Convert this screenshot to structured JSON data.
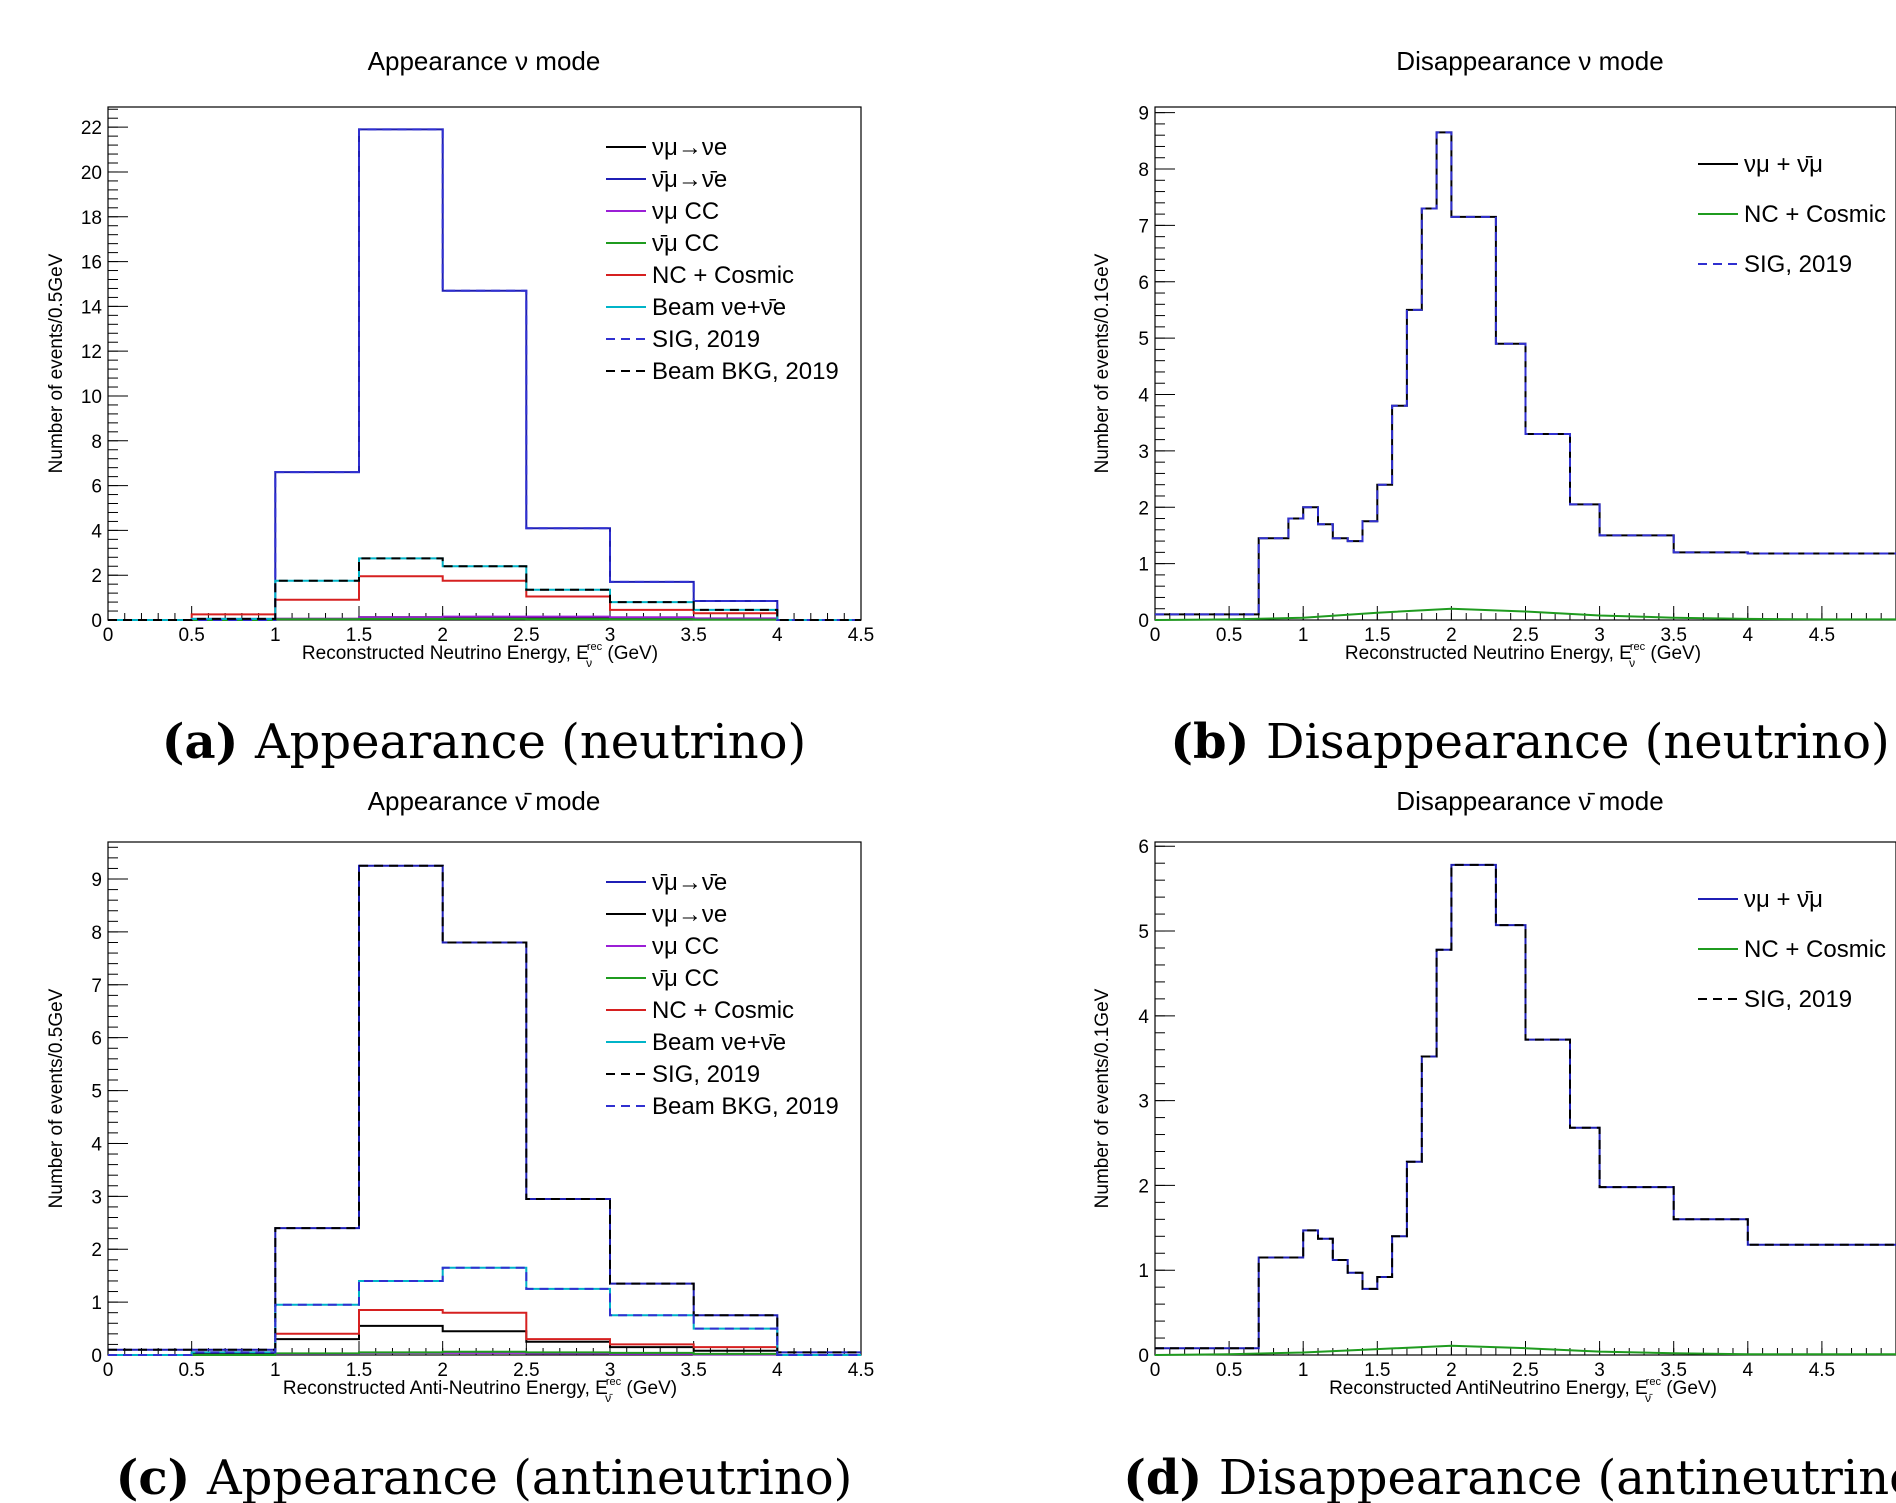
{
  "chart_data": [
    {
      "type": "line",
      "title": "Appearance ν mode",
      "caption_label": "(a)",
      "caption_text": "Appearance (neutrino)",
      "xlabel": "Reconstructed Neutrino Energy, E",
      "xlabel_sup": "rec",
      "xlabel_sub": "ν",
      "xlabel_unit": " (GeV)",
      "ylabel": "Number of events/0.5GeV",
      "xlim": [
        0,
        4.5
      ],
      "ylim": [
        0,
        22.9
      ],
      "xticks": [
        "0",
        "0.5",
        "1",
        "1.5",
        "2",
        "2.5",
        "3",
        "3.5",
        "4",
        "4.5"
      ],
      "yticks": [
        "0",
        "2",
        "4",
        "6",
        "8",
        "10",
        "12",
        "14",
        "16",
        "18",
        "20",
        "22"
      ],
      "ytick_values": [
        0,
        2,
        4,
        6,
        8,
        10,
        12,
        14,
        16,
        18,
        20,
        22
      ],
      "legend_position": "top-right",
      "bin_edges": [
        0,
        0.5,
        1,
        1.5,
        2,
        2.5,
        3,
        3.5,
        4,
        4.5
      ],
      "series": [
        {
          "name": "νμ→νe",
          "color": "#000000",
          "dash": "solid",
          "values": [
            0,
            0,
            0.05,
            0.12,
            0.1,
            0.1,
            0.07,
            0.03,
            0
          ]
        },
        {
          "name": "ν̄μ→ν̄e",
          "color": "#1f1fb5",
          "dash": "solid",
          "values": [
            0,
            0,
            6.6,
            21.9,
            14.7,
            4.1,
            1.7,
            0.85,
            0
          ]
        },
        {
          "name": "νμ CC",
          "color": "#9b1fd6",
          "dash": "solid",
          "values": [
            0,
            0.05,
            0.06,
            0.12,
            0.15,
            0.15,
            0.12,
            0.07,
            0
          ]
        },
        {
          "name": "ν̄μ CC",
          "color": "#1f9b1f",
          "dash": "solid",
          "values": [
            0,
            0,
            0.03,
            0.05,
            0.05,
            0.04,
            0.03,
            0.02,
            0
          ]
        },
        {
          "name": "NC + Cosmic",
          "color": "#d62020",
          "dash": "solid",
          "values": [
            0,
            0.25,
            0.9,
            1.95,
            1.75,
            1.05,
            0.45,
            0.3,
            0
          ]
        },
        {
          "name": "Beam νe+ν̄e",
          "color": "#00b4c8",
          "dash": "solid",
          "values": [
            0,
            0.05,
            1.75,
            2.75,
            2.4,
            1.35,
            0.8,
            0.45,
            0
          ]
        },
        {
          "name": "SIG, 2019",
          "color": "#3030d0",
          "dash": "dashed",
          "values": [
            0,
            0,
            6.6,
            21.9,
            14.7,
            4.1,
            1.7,
            0.85,
            0
          ]
        },
        {
          "name": "Beam BKG, 2019",
          "color": "#000000",
          "dash": "dashed",
          "values": [
            0,
            0.05,
            1.75,
            2.75,
            2.4,
            1.35,
            0.8,
            0.45,
            0
          ]
        }
      ]
    },
    {
      "type": "line",
      "title": "Disappearance ν mode",
      "caption_label": "(b)",
      "caption_text": "Disappearance (neutrino)",
      "xlabel": "Reconstructed Neutrino Energy, E",
      "xlabel_sup": "rec",
      "xlabel_sub": "ν",
      "xlabel_unit": " (GeV)",
      "ylabel": "Number of events/0.1GeV",
      "xlim": [
        0,
        5
      ],
      "ylim": [
        0,
        9.1
      ],
      "xticks": [
        "0",
        "0.5",
        "1",
        "1.5",
        "2",
        "2.5",
        "3",
        "3.5",
        "4",
        "4.5"
      ],
      "yticks": [
        "0",
        "1",
        "2",
        "3",
        "4",
        "5",
        "6",
        "7",
        "8",
        "9"
      ],
      "ytick_values": [
        0,
        1,
        2,
        3,
        4,
        5,
        6,
        7,
        8,
        9
      ],
      "legend_position": "top-right",
      "bin_edges": [
        0,
        0.7,
        0.9,
        1.0,
        1.1,
        1.2,
        1.3,
        1.4,
        1.5,
        1.6,
        1.7,
        1.8,
        1.9,
        2.0,
        2.3,
        2.5,
        2.8,
        3.0,
        3.5,
        4.0,
        4.3,
        5.0
      ],
      "series": [
        {
          "name": "νμ + ν̄μ",
          "color": "#000000",
          "dash": "solid",
          "values": [
            0.1,
            1.45,
            1.8,
            2.0,
            1.7,
            1.45,
            1.4,
            1.75,
            2.4,
            3.8,
            5.5,
            7.3,
            8.65,
            7.15,
            4.9,
            3.3,
            2.05,
            1.5,
            1.2,
            1.18,
            1.18
          ]
        },
        {
          "name": "NC + Cosmic",
          "color": "#1f9b1f",
          "dash": "solid",
          "x": [
            0,
            0.5,
            1.0,
            1.5,
            2.0,
            2.5,
            3.0,
            3.5,
            4.0,
            4.5,
            5.0
          ],
          "y": [
            0,
            0.01,
            0.04,
            0.13,
            0.2,
            0.15,
            0.08,
            0.04,
            0.02,
            0.01,
            0.01
          ]
        },
        {
          "name": "SIG, 2019",
          "color": "#3030d0",
          "dash": "dashed",
          "values": [
            0.1,
            1.45,
            1.8,
            2.0,
            1.7,
            1.45,
            1.4,
            1.75,
            2.4,
            3.8,
            5.5,
            7.3,
            8.65,
            7.15,
            4.9,
            3.3,
            2.05,
            1.5,
            1.2,
            1.18,
            1.18
          ]
        }
      ]
    },
    {
      "type": "line",
      "title": "Appearance ν̄ mode",
      "caption_label": "(c)",
      "caption_text": "Appearance (antineutrino)",
      "xlabel": "Reconstructed Anti-Neutrino Energy, E",
      "xlabel_sup": "rec",
      "xlabel_sub": "ν̄",
      "xlabel_unit": " (GeV)",
      "ylabel": "Number of events/0.5GeV",
      "xlim": [
        0,
        4.5
      ],
      "ylim": [
        0,
        9.7
      ],
      "xticks": [
        "0",
        "0.5",
        "1",
        "1.5",
        "2",
        "2.5",
        "3",
        "3.5",
        "4",
        "4.5"
      ],
      "yticks": [
        "0",
        "1",
        "2",
        "3",
        "4",
        "5",
        "6",
        "7",
        "8",
        "9"
      ],
      "ytick_values": [
        0,
        1,
        2,
        3,
        4,
        5,
        6,
        7,
        8,
        9
      ],
      "legend_position": "top-right",
      "bin_edges": [
        0,
        0.5,
        1,
        1.5,
        2,
        2.5,
        3,
        3.5,
        4,
        4.5
      ],
      "series": [
        {
          "name": "ν̄μ→ν̄e",
          "color": "#1f1fb5",
          "dash": "solid",
          "values": [
            0.1,
            0.1,
            2.4,
            9.25,
            7.8,
            2.95,
            1.35,
            0.75,
            0.05
          ]
        },
        {
          "name": "νμ→νe",
          "color": "#000000",
          "dash": "solid",
          "values": [
            0,
            0.02,
            0.3,
            0.55,
            0.45,
            0.25,
            0.15,
            0.08,
            0
          ]
        },
        {
          "name": "νμ CC",
          "color": "#9b1fd6",
          "dash": "solid",
          "values": [
            0,
            0,
            0.02,
            0.04,
            0.04,
            0.03,
            0.02,
            0.01,
            0
          ]
        },
        {
          "name": "ν̄μ CC",
          "color": "#1f9b1f",
          "dash": "solid",
          "values": [
            0,
            0,
            0.03,
            0.05,
            0.06,
            0.05,
            0.04,
            0.02,
            0
          ]
        },
        {
          "name": "NC + Cosmic",
          "color": "#d62020",
          "dash": "solid",
          "values": [
            0,
            0.05,
            0.4,
            0.85,
            0.8,
            0.3,
            0.2,
            0.15,
            0
          ]
        },
        {
          "name": "Beam νe+ν̄e",
          "color": "#00b4c8",
          "dash": "solid",
          "values": [
            0,
            0.05,
            0.95,
            1.4,
            1.65,
            1.25,
            0.75,
            0.5,
            0
          ]
        },
        {
          "name": "SIG, 2019",
          "color": "#000000",
          "dash": "dashed",
          "values": [
            0.1,
            0.1,
            2.4,
            9.25,
            7.8,
            2.95,
            1.35,
            0.75,
            0.05
          ]
        },
        {
          "name": "Beam BKG, 2019",
          "color": "#3030d0",
          "dash": "dashed",
          "values": [
            0,
            0.05,
            0.95,
            1.4,
            1.65,
            1.25,
            0.75,
            0.5,
            0
          ]
        }
      ]
    },
    {
      "type": "line",
      "title": "Disappearance ν̄ mode",
      "caption_label": "(d)",
      "caption_text": "Disappearance (antineutrino)",
      "xlabel": "Reconstructed AntiNeutrino Energy, E",
      "xlabel_sup": "rec",
      "xlabel_sub": "ν̄",
      "xlabel_unit": " (GeV)",
      "ylabel": "Number of events/0.1GeV",
      "xlim": [
        0,
        5
      ],
      "ylim": [
        0,
        6.05
      ],
      "xticks": [
        "0",
        "0.5",
        "1",
        "1.5",
        "2",
        "2.5",
        "3",
        "3.5",
        "4",
        "4.5"
      ],
      "yticks": [
        "0",
        "1",
        "2",
        "3",
        "4",
        "5",
        "6"
      ],
      "ytick_values": [
        0,
        1,
        2,
        3,
        4,
        5,
        6
      ],
      "legend_position": "top-right",
      "bin_edges": [
        0,
        0.7,
        1.0,
        1.1,
        1.2,
        1.3,
        1.4,
        1.5,
        1.6,
        1.7,
        1.8,
        1.9,
        2.0,
        2.3,
        2.5,
        2.8,
        3.0,
        3.5,
        4.0,
        4.3,
        5.0
      ],
      "series": [
        {
          "name": "νμ + ν̄μ",
          "color": "#1f1fb5",
          "dash": "solid",
          "values": [
            0.08,
            1.15,
            1.47,
            1.37,
            1.12,
            0.97,
            0.78,
            0.92,
            1.4,
            2.28,
            3.52,
            4.78,
            5.78,
            5.07,
            3.72,
            2.68,
            1.98,
            1.6,
            1.3,
            1.3
          ]
        },
        {
          "name": "NC + Cosmic",
          "color": "#1f9b1f",
          "dash": "solid",
          "x": [
            0,
            0.5,
            1.0,
            1.5,
            2.0,
            2.5,
            3.0,
            3.5,
            4.0,
            4.5,
            5.0
          ],
          "y": [
            0,
            0.01,
            0.03,
            0.07,
            0.11,
            0.08,
            0.04,
            0.02,
            0.01,
            0.01,
            0.01
          ]
        },
        {
          "name": "SIG, 2019",
          "color": "#000000",
          "dash": "dashed",
          "values": [
            0.08,
            1.15,
            1.47,
            1.37,
            1.12,
            0.97,
            0.78,
            0.92,
            1.4,
            2.28,
            3.52,
            4.78,
            5.78,
            5.07,
            3.72,
            2.68,
            1.98,
            1.6,
            1.3,
            1.3
          ]
        }
      ]
    }
  ]
}
